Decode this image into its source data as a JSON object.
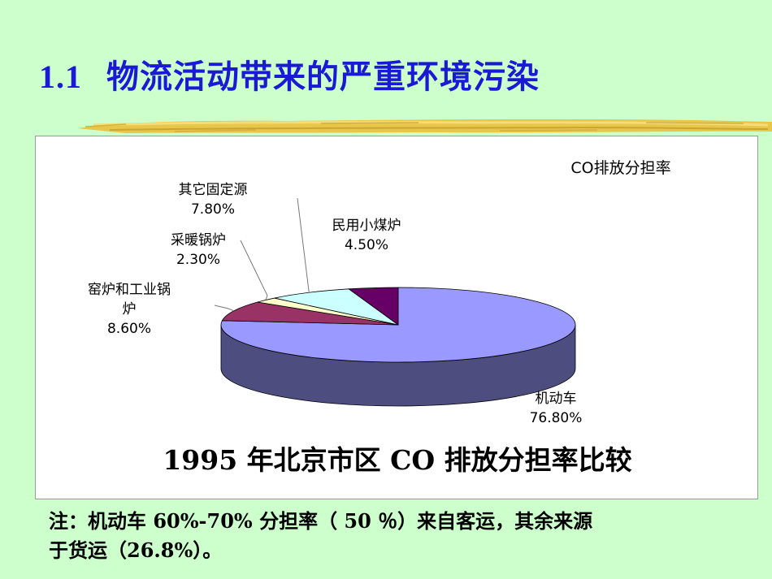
{
  "slide": {
    "number": "1.1",
    "title": "物流活动带来的严重环境污染",
    "caption": "1995 年北京市区 CO 排放分担率比较",
    "note_line1": "注：机动车 60%-70% 分担率（ 50 ％）来自客运，其余来源",
    "note_line2": "于货运（26.8%）。"
  },
  "chart_data": {
    "type": "pie",
    "title": "CO排放分担率",
    "slices": [
      {
        "name": "机动车",
        "value": 76.8,
        "label": "76.80%",
        "color": "#9999ff",
        "side_color": "#4d4d80"
      },
      {
        "name": "窑炉和工业锅炉",
        "value": 8.6,
        "label": "8.60%",
        "color": "#993366",
        "side_color": "#4d1a33"
      },
      {
        "name": "采暖锅炉",
        "value": 2.3,
        "label": "2.30%",
        "color": "#ffffcc",
        "side_color": "#808066"
      },
      {
        "name": "其它固定源",
        "value": 7.8,
        "label": "7.80%",
        "color": "#ccffff",
        "side_color": "#668080"
      },
      {
        "name": "民用小煤炉",
        "value": 4.5,
        "label": "4.50%",
        "color": "#660066",
        "side_color": "#330033"
      }
    ],
    "label_lines": {
      "机动车": [
        "机动车",
        "76.80%"
      ],
      "窑炉和工业锅炉": [
        "窑炉和工业锅",
        "炉",
        "8.60%"
      ],
      "采暖锅炉": [
        "采暖锅炉",
        "2.30%"
      ],
      "其它固定源": [
        "其它固定源",
        "7.80%"
      ],
      "民用小煤炉": [
        "民用小煤炉",
        "4.50%"
      ]
    }
  }
}
